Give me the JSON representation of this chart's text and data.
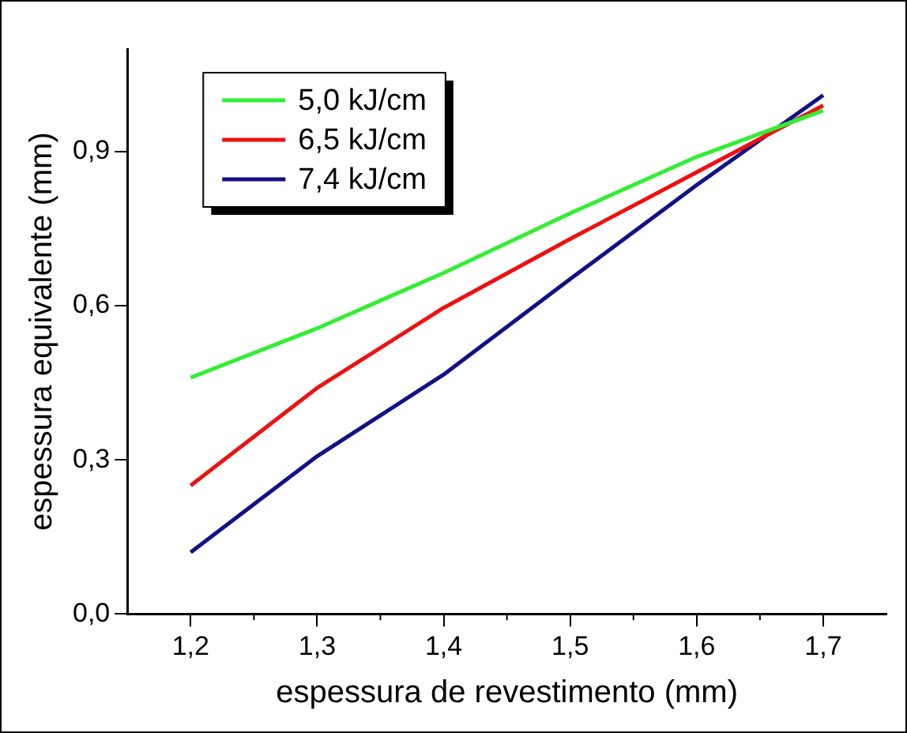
{
  "chart_data": {
    "type": "line",
    "xlabel": "espessura de revestimento (mm)",
    "ylabel": "espessura equivalente (mm)",
    "x": [
      1.2,
      1.3,
      1.4,
      1.5,
      1.6,
      1.7
    ],
    "series": [
      {
        "name": "5,0 kJ/cm",
        "color": "#33ee33",
        "values": [
          0.46,
          0.556,
          0.664,
          0.78,
          0.89,
          0.98
        ]
      },
      {
        "name": "6,5 kJ/cm",
        "color": "#ee1111",
        "values": [
          0.25,
          0.44,
          0.596,
          0.73,
          0.86,
          0.99
        ]
      },
      {
        "name": "7,4 kJ/cm",
        "color": "#111188",
        "values": [
          0.12,
          0.307,
          0.466,
          0.652,
          0.835,
          1.01
        ]
      }
    ],
    "xlim": [
      1.15,
      1.75
    ],
    "xticks": [
      {
        "value": 1.2,
        "label": "1,2"
      },
      {
        "value": 1.3,
        "label": "1,3"
      },
      {
        "value": 1.4,
        "label": "1,4"
      },
      {
        "value": 1.5,
        "label": "1,5"
      },
      {
        "value": 1.6,
        "label": "1,6"
      },
      {
        "value": 1.7,
        "label": "1,7"
      }
    ],
    "ylim": [
      0,
      1.1
    ],
    "yticks": [
      {
        "value": 0,
        "label": "0,0"
      },
      {
        "value": 0.3,
        "label": "0,3"
      },
      {
        "value": 0.6,
        "label": "0,6"
      },
      {
        "value": 0.9,
        "label": "0,9"
      }
    ],
    "grid": false,
    "legend": "top left",
    "marker": "none",
    "line_style": "solid"
  }
}
